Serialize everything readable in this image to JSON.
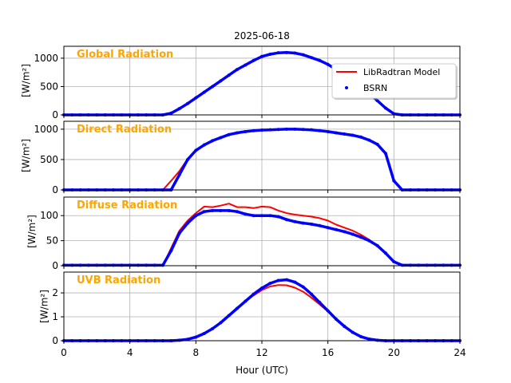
{
  "chart_data": {
    "type": "line",
    "title": "2025-06-18",
    "xlabel": "Hour (UTC)",
    "xlim": [
      0,
      24
    ],
    "xticks": [
      0,
      4,
      8,
      12,
      16,
      20,
      24
    ],
    "xtick_labels": [
      "0",
      "4",
      "8",
      "12",
      "16",
      "20",
      "24"
    ],
    "grid": true,
    "legend": {
      "placement": "top-right of first panel",
      "entries": [
        {
          "name": "LibRadtran Model",
          "color": "#ff0000",
          "marker": "line"
        },
        {
          "name": "BSRN",
          "color": "#0000ff",
          "marker": "dot"
        }
      ]
    },
    "x": [
      0,
      0.5,
      1,
      1.5,
      2,
      2.5,
      3,
      3.5,
      4,
      4.5,
      5,
      5.5,
      6,
      6.5,
      7,
      7.5,
      8,
      8.5,
      9,
      9.5,
      10,
      10.5,
      11,
      11.5,
      12,
      12.5,
      13,
      13.5,
      14,
      14.5,
      15,
      15.5,
      16,
      16.5,
      17,
      17.5,
      18,
      18.5,
      19,
      19.5,
      20,
      20.5,
      21,
      21.5,
      22,
      22.5,
      23,
      23.5,
      24
    ],
    "panels": [
      {
        "label": "Global Radiation",
        "ylabel": "[W/m²]",
        "ylim": [
          0,
          1210
        ],
        "yticks": [
          0,
          500,
          1000
        ],
        "ytick_labels": [
          "0",
          "500",
          "1000"
        ],
        "series": [
          {
            "name": "LibRadtran Model",
            "values": [
              0,
              0,
              0,
              0,
              0,
              0,
              0,
              0,
              0,
              0,
              0,
              0,
              0,
              35,
              115,
              205,
              305,
              405,
              505,
              605,
              705,
              800,
              880,
              960,
              1030,
              1070,
              1095,
              1100,
              1090,
              1060,
              1010,
              960,
              890,
              800,
              710,
              610,
              500,
              380,
              250,
              120,
              20,
              0,
              0,
              0,
              0,
              0,
              0,
              0,
              0
            ]
          },
          {
            "name": "BSRN",
            "values": [
              0,
              0,
              0,
              0,
              0,
              0,
              0,
              0,
              0,
              0,
              0,
              0,
              0,
              30,
              110,
              200,
              300,
              400,
              500,
              600,
              700,
              800,
              880,
              960,
              1030,
              1070,
              1095,
              1100,
              1090,
              1060,
              1010,
              960,
              890,
              800,
              710,
              610,
              500,
              380,
              250,
              120,
              20,
              0,
              0,
              0,
              0,
              0,
              0,
              0,
              0
            ]
          }
        ]
      },
      {
        "label": "Direct Radiation",
        "ylabel": "[W/m²]",
        "ylim": [
          0,
          1130
        ],
        "yticks": [
          0,
          500,
          1000
        ],
        "ytick_labels": [
          "0",
          "500",
          "1000"
        ],
        "series": [
          {
            "name": "LibRadtran Model",
            "values": [
              0,
              0,
              0,
              0,
              0,
              0,
              0,
              0,
              0,
              0,
              0,
              0,
              0,
              150,
              310,
              510,
              655,
              740,
              810,
              860,
              910,
              940,
              960,
              975,
              985,
              990,
              995,
              1000,
              1000,
              995,
              990,
              975,
              960,
              940,
              920,
              900,
              870,
              820,
              750,
              600,
              150,
              0,
              0,
              0,
              0,
              0,
              0,
              0,
              0
            ]
          },
          {
            "name": "BSRN",
            "values": [
              0,
              0,
              0,
              0,
              0,
              0,
              0,
              0,
              0,
              0,
              0,
              0,
              0,
              0,
              250,
              500,
              650,
              740,
              810,
              860,
              910,
              940,
              960,
              975,
              985,
              990,
              995,
              1000,
              1000,
              995,
              990,
              975,
              960,
              940,
              920,
              900,
              870,
              820,
              750,
              600,
              150,
              0,
              0,
              0,
              0,
              0,
              0,
              0,
              0
            ]
          }
        ]
      },
      {
        "label": "Diffuse Radiation",
        "ylabel": "[W/m²]",
        "ylim": [
          0,
          137
        ],
        "yticks": [
          0,
          50,
          100
        ],
        "ytick_labels": [
          "0",
          "50",
          "100"
        ],
        "series": [
          {
            "name": "LibRadtran Model",
            "values": [
              0,
              0,
              0,
              0,
              0,
              0,
              0,
              0,
              0,
              0,
              0,
              0,
              0,
              35,
              70,
              90,
              105,
              118,
              117,
              120,
              124,
              117,
              117,
              115,
              118,
              117,
              110,
              105,
              102,
              100,
              98,
              95,
              90,
              82,
              76,
              70,
              62,
              52,
              40,
              25,
              8,
              1,
              0,
              0,
              0,
              0,
              0,
              0,
              0
            ]
          },
          {
            "name": "BSRN",
            "values": [
              1,
              1,
              1,
              1,
              1,
              1,
              1,
              1,
              1,
              1,
              1,
              1,
              1,
              30,
              65,
              85,
              100,
              108,
              110,
              110,
              110,
              108,
              103,
              100,
              100,
              100,
              98,
              92,
              88,
              85,
              83,
              80,
              76,
              72,
              68,
              63,
              57,
              50,
              40,
              25,
              8,
              1,
              1,
              1,
              1,
              1,
              1,
              1,
              1
            ]
          }
        ]
      },
      {
        "label": "UVB Radiation",
        "ylabel": "[W/m²]",
        "ylim": [
          0,
          2.87
        ],
        "yticks": [
          0,
          1,
          2
        ],
        "ytick_labels": [
          "0",
          "1",
          "2"
        ],
        "series": [
          {
            "name": "LibRadtran Model",
            "values": [
              0,
              0,
              0,
              0,
              0,
              0,
              0,
              0,
              0,
              0,
              0,
              0,
              0,
              0,
              0.02,
              0.06,
              0.15,
              0.3,
              0.5,
              0.75,
              1.05,
              1.35,
              1.63,
              1.9,
              2.12,
              2.27,
              2.33,
              2.32,
              2.22,
              2.05,
              1.8,
              1.52,
              1.22,
              0.9,
              0.6,
              0.35,
              0.17,
              0.07,
              0.02,
              0,
              0,
              0,
              0,
              0,
              0,
              0,
              0,
              0,
              0
            ]
          },
          {
            "name": "BSRN",
            "values": [
              0,
              0,
              0,
              0,
              0,
              0,
              0,
              0,
              0,
              0,
              0,
              0,
              0,
              0,
              0.02,
              0.06,
              0.15,
              0.3,
              0.5,
              0.75,
              1.05,
              1.35,
              1.65,
              1.95,
              2.2,
              2.4,
              2.52,
              2.55,
              2.45,
              2.25,
              1.95,
              1.6,
              1.25,
              0.9,
              0.6,
              0.35,
              0.17,
              0.07,
              0.02,
              0,
              0,
              0,
              0,
              0,
              0,
              0,
              0,
              0,
              0
            ]
          }
        ]
      }
    ]
  }
}
